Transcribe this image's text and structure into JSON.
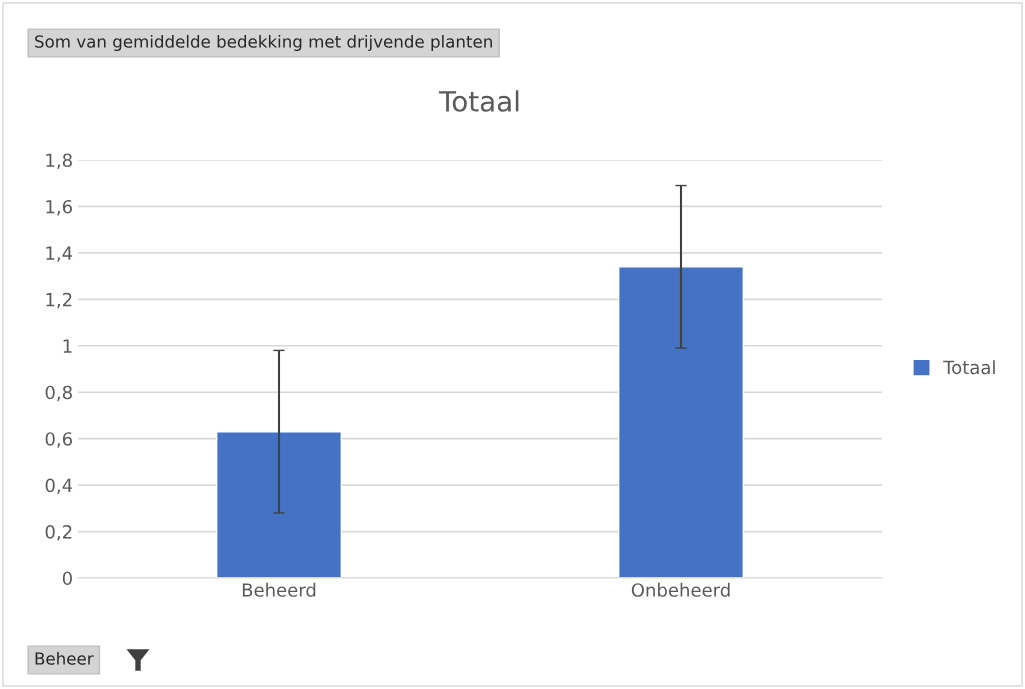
{
  "chart_data": {
    "type": "bar",
    "title": "Totaal",
    "categories": [
      "Beheerd",
      "Onbeheerd"
    ],
    "series": [
      {
        "name": "Totaal",
        "color": "#4472c4",
        "values": [
          0.63,
          1.34
        ],
        "errors": [
          0.35,
          0.35
        ]
      }
    ],
    "ylim": [
      0,
      1.8
    ],
    "yticks": [
      0,
      {
        "value": 0.2,
        "label": "0,2"
      },
      {
        "value": 0.4,
        "label": "0,4"
      },
      {
        "value": 0.6,
        "label": "0,6"
      },
      {
        "value": 0.8,
        "label": "0,8"
      },
      1,
      {
        "value": 1.2,
        "label": "1,2"
      },
      {
        "value": 1.4,
        "label": "1,4"
      },
      {
        "value": 1.6,
        "label": "1,6"
      },
      {
        "value": 1.8,
        "label": "1,8"
      }
    ],
    "grid": "y",
    "legend": "right",
    "annotations": [
      "Som van gemiddelde bedekking met drijvende planten",
      "Beheer"
    ]
  }
}
